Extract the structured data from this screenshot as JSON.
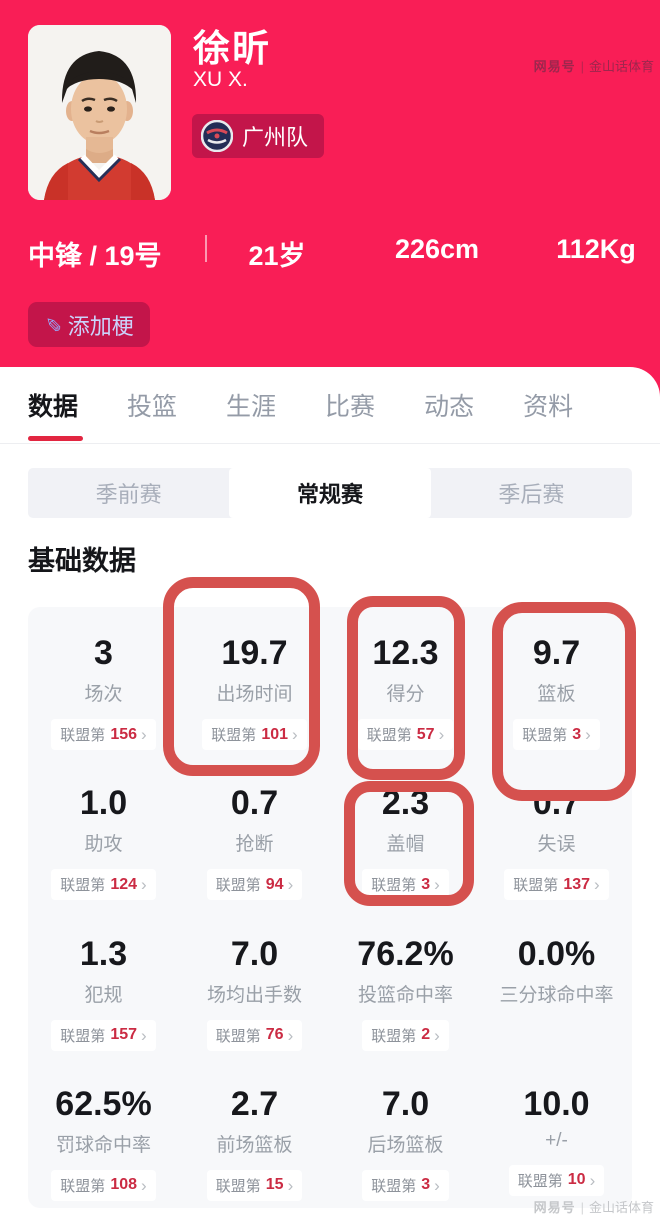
{
  "colors": {
    "pink": "#F91E56",
    "dark-red": "#C3154A",
    "accent-red": "#E22641",
    "rank-red": "#CB2B43",
    "annotation-red": "#D5514E"
  },
  "watermark": {
    "brand": "网易号",
    "divider": "|",
    "channel": "金山话体育"
  },
  "hero": {
    "name": "徐昕",
    "name_en": "XU X.",
    "team": "广州队",
    "position_number": "中锋 / 19号",
    "age": "21岁",
    "height": "226cm",
    "weight": "112Kg",
    "add_button": "添加梗",
    "pen_icon": "✎"
  },
  "tabs": [
    {
      "label": "数据",
      "active": true
    },
    {
      "label": "投篮",
      "active": false
    },
    {
      "label": "生涯",
      "active": false
    },
    {
      "label": "比赛",
      "active": false
    },
    {
      "label": "动态",
      "active": false
    },
    {
      "label": "资料",
      "active": false
    }
  ],
  "season_tabs": [
    {
      "label": "季前赛",
      "active": false
    },
    {
      "label": "常规赛",
      "active": true
    },
    {
      "label": "季后赛",
      "active": false
    }
  ],
  "section_title": "基础数据",
  "rank_prefix": "联盟第",
  "chevron": "›",
  "stats": [
    {
      "value": "3",
      "label": "场次",
      "rank": "156"
    },
    {
      "value": "19.7",
      "label": "出场时间",
      "rank": "101"
    },
    {
      "value": "12.3",
      "label": "得分",
      "rank": "57"
    },
    {
      "value": "9.7",
      "label": "篮板",
      "rank": "3"
    },
    {
      "value": "1.0",
      "label": "助攻",
      "rank": "124"
    },
    {
      "value": "0.7",
      "label": "抢断",
      "rank": "94"
    },
    {
      "value": "2.3",
      "label": "盖帽",
      "rank": "3"
    },
    {
      "value": "0.7",
      "label": "失误",
      "rank": "137"
    },
    {
      "value": "1.3",
      "label": "犯规",
      "rank": "157"
    },
    {
      "value": "7.0",
      "label": "场均出手数",
      "rank": "76"
    },
    {
      "value": "76.2%",
      "label": "投篮命中率",
      "rank": "2"
    },
    {
      "value": "0.0%",
      "label": "三分球命中率",
      "rank": ""
    },
    {
      "value": "62.5%",
      "label": "罚球命中率",
      "rank": "108"
    },
    {
      "value": "2.7",
      "label": "前场篮板",
      "rank": "15"
    },
    {
      "value": "7.0",
      "label": "后场篮板",
      "rank": "3"
    },
    {
      "value": "10.0",
      "label": "+/-",
      "rank": "10"
    }
  ]
}
